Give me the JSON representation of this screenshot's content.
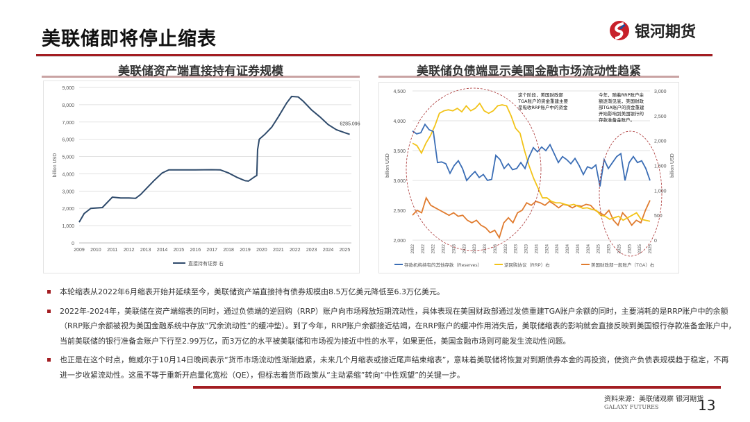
{
  "header": {
    "title": "美联储即将停止缩表",
    "logo_text": "银河期货"
  },
  "sections": {
    "left_title": "美联储资产端直接持有证券规模",
    "right_title": "美联储负债端显示美国金融市场流动性趋紧"
  },
  "chart_data": [
    {
      "type": "line",
      "title": "美联储资产端直接持有证券规模",
      "ylabel": "billion USD",
      "xlabel": "",
      "ylim": [
        0,
        9000
      ],
      "xlim": [
        2009,
        2025.4
      ],
      "yticks": [
        "0",
        "1,000",
        "2,000",
        "3,000",
        "4,000",
        "5,000",
        "6,000",
        "7,000",
        "8,000",
        "9,000"
      ],
      "xticks": [
        "2009",
        "2010",
        "2011",
        "2012",
        "2013",
        "2014",
        "2015",
        "2016",
        "2017",
        "2018",
        "2019",
        "2020",
        "2021",
        "2022",
        "2023",
        "2024",
        "2025"
      ],
      "grid": true,
      "legend": "bottom",
      "last_label": "6285.096",
      "series": [
        {
          "name": "直接持有证券 右",
          "color": "#2e4a6b",
          "x": [
            2009.0,
            2009.3,
            2009.7,
            2010.4,
            2011.0,
            2011.5,
            2012.0,
            2012.4,
            2012.7,
            2013.0,
            2013.5,
            2014.0,
            2014.4,
            2015,
            2016,
            2017,
            2017.5,
            2018,
            2018.5,
            2019.0,
            2019.2,
            2019.6,
            2019.7,
            2019.75,
            2019.85,
            2020.2,
            2020.6,
            2021.0,
            2021.5,
            2021.8,
            2022.2,
            2022.5,
            2023.0,
            2023.5,
            2024.0,
            2024.5,
            2025.0,
            2025.3
          ],
          "y": [
            1200,
            1700,
            2000,
            2050,
            2650,
            2600,
            2600,
            2580,
            2800,
            3100,
            3600,
            4050,
            4230,
            4230,
            4230,
            4240,
            4230,
            4050,
            3800,
            3600,
            3580,
            3850,
            3900,
            5400,
            6000,
            6300,
            6700,
            7300,
            8100,
            8480,
            8450,
            8200,
            7700,
            7300,
            6850,
            6550,
            6380,
            6285
          ]
        }
      ]
    },
    {
      "type": "line",
      "title": "美联储负债端显示美国金融市场流动性趋紧",
      "ylabel": "billion USD",
      "y2label": "billion USD",
      "ylim": [
        2000,
        4500
      ],
      "y2lim": [
        0,
        3000
      ],
      "yticks": [
        "2,000",
        "2,500",
        "3,000",
        "3,500",
        "4,000",
        "4,500"
      ],
      "y2ticks": [
        "0",
        "500",
        "1,000",
        "1,500",
        "2,000",
        "2,500",
        "3,000"
      ],
      "xticks": [
        "2022",
        "2022",
        "2022",
        "2022",
        "2023",
        "2023",
        "2023",
        "2023",
        "2023",
        "2023",
        "2023",
        "2023",
        "2024",
        "2024",
        "2024",
        "2024",
        "2024",
        "2024",
        "2025",
        "2025",
        "2025",
        "2025",
        "2025",
        "2025"
      ],
      "grid": true,
      "legend": "bottom",
      "annotations": [
        "这个阶段，美国财政部TGA账户的资金重建主要是吸收RRP账户中的资金",
        "今年，随着RRP账户余额逐渐见底，美国财政部TGA账户的资金重建开始影响到美国银行的存款准备金账户。"
      ],
      "series": [
        {
          "name": "存款机构持有的其他存款（Reserves）",
          "axis": "left",
          "color": "#3a6db5",
          "y": [
            3830,
            3780,
            3800,
            3940,
            3850,
            3820,
            3300,
            3310,
            3280,
            3120,
            3250,
            3330,
            3200,
            3000,
            3080,
            3150,
            3050,
            3100,
            3000,
            3020,
            3420,
            3350,
            3200,
            3280,
            3180,
            3200,
            3300,
            3200,
            3400,
            3550,
            3480,
            3560,
            3500,
            3600,
            3450,
            3300,
            3400,
            3350,
            3280,
            3370,
            3250,
            3100,
            3230,
            3200,
            3260,
            2900,
            3350,
            3200,
            3300,
            3400,
            3450,
            3000,
            3300,
            3400,
            3300,
            3330,
            3200,
            3000
          ]
        },
        {
          "name": "逆回购协议（RRP）右",
          "axis": "right",
          "color": "#f2c318",
          "y": [
            1950,
            1900,
            1750,
            1950,
            2100,
            2300,
            2550,
            2600,
            2620,
            2600,
            2650,
            2580,
            2700,
            2600,
            2650,
            2750,
            2600,
            2550,
            2600,
            2700,
            2720,
            2700,
            2500,
            2250,
            2150,
            1800,
            1500,
            1250,
            1050,
            850,
            850,
            780,
            750,
            750,
            720,
            700,
            720,
            680,
            640,
            650,
            620,
            600,
            500,
            480,
            420,
            450,
            480,
            400,
            450,
            500,
            550,
            420,
            400,
            380
          ]
        },
        {
          "name": "美国财政部一般账户（TGA）右",
          "axis": "right",
          "color": "#e07b2e",
          "y": [
            500,
            600,
            550,
            850,
            700,
            650,
            600,
            550,
            500,
            550,
            480,
            500,
            400,
            350,
            400,
            300,
            250,
            150,
            200,
            50,
            350,
            450,
            350,
            550,
            600,
            750,
            700,
            780,
            750,
            700,
            780,
            720,
            650,
            720,
            700,
            650,
            700,
            680,
            720,
            700,
            600,
            550,
            500,
            600,
            400,
            300,
            550,
            450,
            300,
            400,
            350,
            600,
            800
          ]
        }
      ]
    }
  ],
  "bullets": [
    "本轮缩表从2022年6月缩表开始并延续至今，美联储资产端直接持有债券规模由8.5万亿美元降低至6.3万亿美元。",
    "2022年-2024年，美联储在资产端缩表的同时，通过负债端的逆回购（RRP）账户向市场释放短期流动性，具体表现在美国财政部通过发债重建TGA账户余额的同时，主要消耗的是RRP账户中的余额（RRP账户余额被视为美国金融系统中存放“冗余流动性”的缓冲垫）。到了今年，RRP账户余额接近枯竭，在RRP账户的缓冲作用消失后，美联储缩表的影响就会直接反映到美国银行存款准备金账户中，当前美联储的银行准备金账户下行至2.99万亿，而3万亿的水平被美联储和市场视为接近中性的水平，如果更低，美国金融市场则可能发生流动性问题。",
    "也正是在这个时点，鲍威尔于10月14日晚间表示“货币市场流动性渐渐趋紧，未来几个月缩表或接近尾声结束缩表”，意味着美联储将恢复对到期债券本金的再投资，使资产负债表规模趋于稳定，不再进一步收紧流动性。这虽不等于重新开启量化宽松（QE），但标志着货币政策从“主动紧缩”转向“中性观望”的关键一步。"
  ],
  "footer": {
    "source": "资料来源：美联储观察 银河期货",
    "brand": "GALAXY FUTURES",
    "page": "13"
  }
}
